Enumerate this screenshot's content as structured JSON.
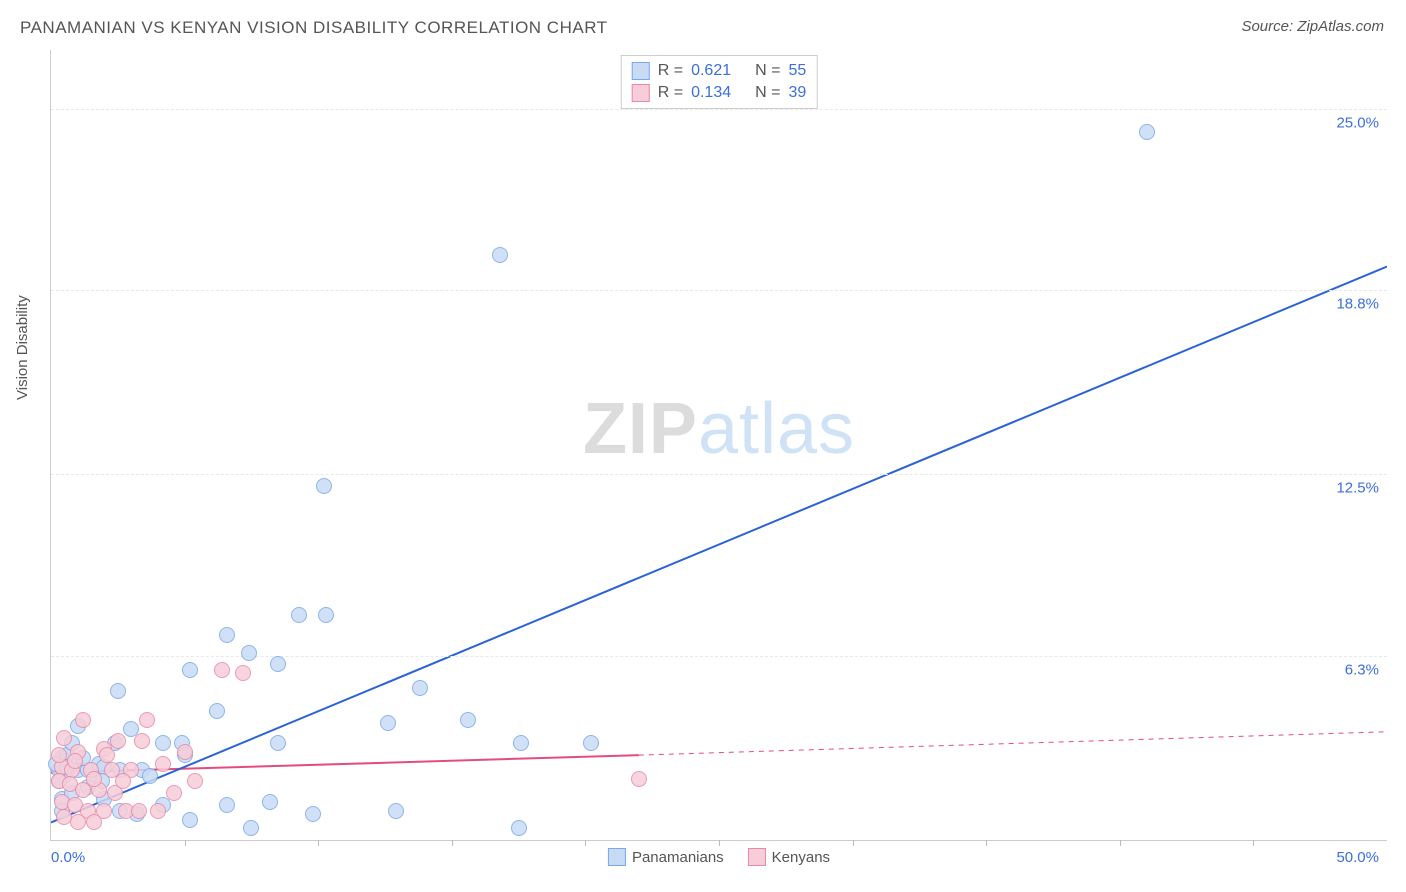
{
  "title": "PANAMANIAN VS KENYAN VISION DISABILITY CORRELATION CHART",
  "source": "Source: ZipAtlas.com",
  "watermark_bold": "ZIP",
  "watermark_light": "atlas",
  "yaxis_title": "Vision Disability",
  "chart": {
    "type": "scatter",
    "xlim": [
      0,
      50
    ],
    "ylim": [
      0,
      27
    ],
    "x_min_label": "0.0%",
    "x_max_label": "50.0%",
    "y_ticks": [
      {
        "v": 6.3,
        "label": "6.3%"
      },
      {
        "v": 12.5,
        "label": "12.5%"
      },
      {
        "v": 18.8,
        "label": "18.8%"
      },
      {
        "v": 25.0,
        "label": "25.0%"
      }
    ],
    "x_tick_positions": [
      5,
      10,
      15,
      20,
      25,
      30,
      35,
      40,
      45
    ],
    "background_color": "#ffffff",
    "grid_color": "#e8e8e8",
    "point_radius": 8,
    "series": [
      {
        "name": "Panamanians",
        "fill": "#c8dbf5",
        "stroke": "#7aa9e8",
        "trend_color": "#2a63d6",
        "trend_width": 2,
        "trend": {
          "x1": 0,
          "y1": 0.6,
          "x2": 50,
          "y2": 19.6
        },
        "R": "0.621",
        "N": "55",
        "points": [
          [
            41.0,
            24.2
          ],
          [
            16.8,
            20.0
          ],
          [
            10.2,
            12.1
          ],
          [
            9.3,
            7.7
          ],
          [
            10.3,
            7.7
          ],
          [
            6.6,
            7.0
          ],
          [
            2.5,
            5.1
          ],
          [
            5.2,
            5.8
          ],
          [
            7.4,
            6.4
          ],
          [
            8.5,
            6.0
          ],
          [
            13.8,
            5.2
          ],
          [
            15.6,
            4.1
          ],
          [
            17.6,
            3.3
          ],
          [
            20.2,
            3.3
          ],
          [
            12.6,
            4.0
          ],
          [
            0.5,
            2.2
          ],
          [
            0.3,
            2.4
          ],
          [
            1.0,
            2.4
          ],
          [
            1.4,
            2.4
          ],
          [
            1.8,
            2.6
          ],
          [
            0.4,
            2.8
          ],
          [
            1.2,
            2.8
          ],
          [
            0.6,
            2.9
          ],
          [
            2.0,
            2.5
          ],
          [
            2.6,
            2.4
          ],
          [
            3.4,
            2.4
          ],
          [
            0.8,
            3.3
          ],
          [
            2.4,
            3.3
          ],
          [
            4.2,
            3.3
          ],
          [
            4.9,
            3.3
          ],
          [
            8.5,
            3.3
          ],
          [
            3.0,
            3.8
          ],
          [
            6.2,
            4.4
          ],
          [
            1.0,
            3.9
          ],
          [
            0.3,
            2.0
          ],
          [
            0.4,
            1.4
          ],
          [
            0.8,
            1.6
          ],
          [
            1.4,
            1.8
          ],
          [
            2.0,
            1.4
          ],
          [
            2.6,
            1.0
          ],
          [
            3.2,
            0.9
          ],
          [
            4.2,
            1.2
          ],
          [
            5.2,
            0.7
          ],
          [
            6.6,
            1.2
          ],
          [
            8.2,
            1.3
          ],
          [
            9.8,
            0.9
          ],
          [
            12.9,
            1.0
          ],
          [
            7.5,
            0.4
          ],
          [
            17.5,
            0.4
          ],
          [
            0.4,
            1.0
          ],
          [
            1.9,
            2.0
          ],
          [
            3.7,
            2.2
          ],
          [
            5.0,
            2.9
          ],
          [
            0.2,
            2.6
          ],
          [
            0.6,
            2.5
          ]
        ]
      },
      {
        "name": "Kenyans",
        "fill": "#f7cdd9",
        "stroke": "#e88aa6",
        "trend_color": "#e34d7a",
        "trend_width": 2,
        "trend_solid": {
          "x1": 0,
          "y1": 2.3,
          "x2": 22,
          "y2": 2.9
        },
        "trend_dash": {
          "x1": 22,
          "y1": 2.9,
          "x2": 50,
          "y2": 3.7
        },
        "R": "0.134",
        "N": "39",
        "points": [
          [
            22.0,
            2.1
          ],
          [
            6.4,
            5.8
          ],
          [
            7.2,
            5.7
          ],
          [
            3.6,
            4.1
          ],
          [
            1.2,
            4.1
          ],
          [
            0.5,
            3.5
          ],
          [
            1.0,
            3.0
          ],
          [
            2.0,
            3.1
          ],
          [
            2.5,
            3.4
          ],
          [
            3.4,
            3.4
          ],
          [
            0.4,
            2.5
          ],
          [
            0.8,
            2.4
          ],
          [
            1.5,
            2.4
          ],
          [
            2.3,
            2.4
          ],
          [
            3.0,
            2.4
          ],
          [
            0.3,
            2.0
          ],
          [
            0.7,
            1.9
          ],
          [
            1.2,
            1.7
          ],
          [
            1.8,
            1.7
          ],
          [
            2.4,
            1.6
          ],
          [
            0.4,
            1.3
          ],
          [
            0.9,
            1.2
          ],
          [
            1.4,
            1.0
          ],
          [
            2.0,
            1.0
          ],
          [
            2.8,
            1.0
          ],
          [
            0.5,
            0.8
          ],
          [
            1.0,
            0.6
          ],
          [
            1.6,
            0.6
          ],
          [
            3.3,
            1.0
          ],
          [
            4.0,
            1.0
          ],
          [
            4.6,
            1.6
          ],
          [
            5.4,
            2.0
          ],
          [
            4.2,
            2.6
          ],
          [
            5.0,
            3.0
          ],
          [
            2.7,
            2.0
          ],
          [
            0.3,
            2.9
          ],
          [
            0.9,
            2.7
          ],
          [
            1.6,
            2.1
          ],
          [
            2.1,
            2.9
          ]
        ]
      }
    ]
  },
  "legend_top": {
    "label_R": "R =",
    "label_N": "N ="
  },
  "legend_bottom": [
    {
      "label": "Panamanians",
      "fill": "#c8dbf5",
      "stroke": "#7aa9e8"
    },
    {
      "label": "Kenyans",
      "fill": "#f7cdd9",
      "stroke": "#e88aa6"
    }
  ]
}
